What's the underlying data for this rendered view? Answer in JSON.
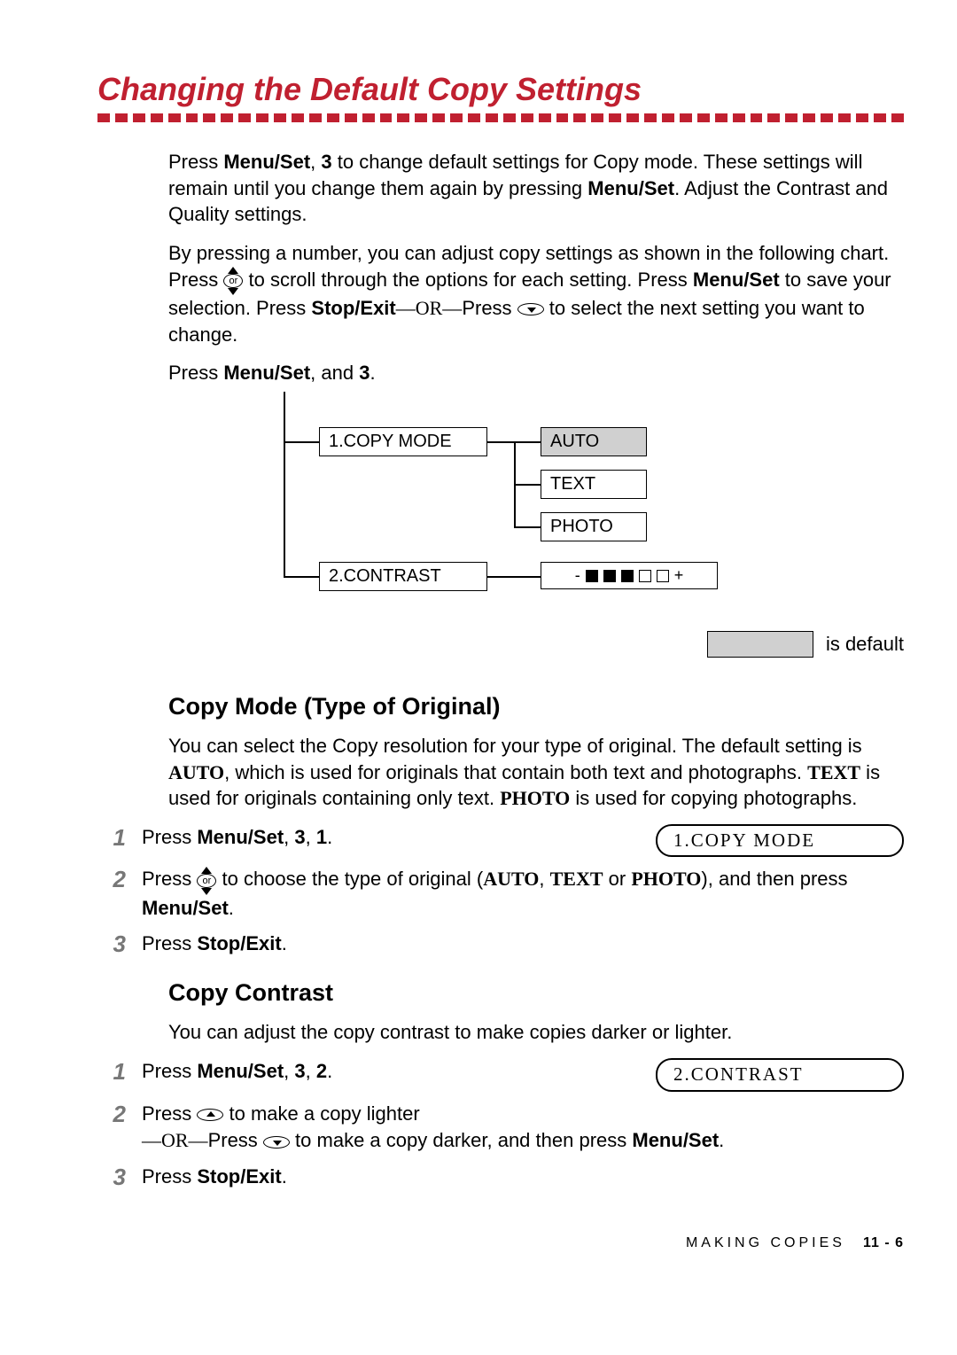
{
  "colors": {
    "heading": "#c02030",
    "dash": "#c02030",
    "default_fill": "#d0d0d0",
    "step_num": "#777777"
  },
  "h1": "Changing the Default Copy Settings",
  "intro": {
    "p1a": "Press ",
    "p1b": "Menu/Set",
    "p1c": ", ",
    "p1d": "3",
    "p1e": " to change default settings for Copy mode. These settings will remain until you change them again by pressing ",
    "p1f": "Menu/Set",
    "p1g": ". Adjust the Contrast and Quality settings.",
    "p2a": "By pressing a number, you can adjust copy settings as shown in the following chart. Press ",
    "p2or": "or",
    "p2b": " to scroll through the options for each setting. Press ",
    "p2c": "Menu/Set",
    "p2d": " to save your selection. Press ",
    "p2e": "Stop/Exit",
    "p2orline": "—OR—",
    "p2f": "Press ",
    "p2g": " to select the next setting you want to change.",
    "p3a": "Press ",
    "p3b": "Menu/Set",
    "p3c": ", and ",
    "p3d": "3",
    "p3e": "."
  },
  "diagram": {
    "n1": "1.COPY MODE",
    "opt1": "AUTO",
    "opt2": "TEXT",
    "opt3": "PHOTO",
    "n2": "2.CONTRAST",
    "minus": "-",
    "plus": "+"
  },
  "legend": {
    "label": "is default"
  },
  "copymode": {
    "h2": "Copy Mode (Type of Original)",
    "p_a": "You can select the Copy resolution for your type of original. The default setting is ",
    "p_b": "AUTO",
    "p_c": ", which is used for originals that contain both text and photographs. ",
    "p_d": "TEXT",
    "p_e": " is used for originals containing only text. ",
    "p_f": "PHOTO",
    "p_g": " is used for copying photographs.",
    "s1a": "Press ",
    "s1b": "Menu/Set",
    "s1c": ", ",
    "s1d": "3",
    "s1e": ", ",
    "s1f": "1",
    "s1g": ".",
    "lcd1": "1.COPY MODE",
    "s2a": "Press ",
    "s2or": "or",
    "s2b": " to choose the type of original (",
    "s2c": "AUTO",
    "s2d": ", ",
    "s2e": "TEXT",
    "s2f": " or ",
    "s2g": "PHOTO",
    "s2h": "), and then press ",
    "s2i": "Menu/Set",
    "s2j": ".",
    "s3a": "Press ",
    "s3b": "Stop/Exit",
    "s3c": "."
  },
  "contrast": {
    "h2": "Copy Contrast",
    "p": "You can adjust the copy contrast to make copies darker or lighter.",
    "s1a": "Press ",
    "s1b": "Menu/Set",
    "s1c": ", ",
    "s1d": "3",
    "s1e": ", ",
    "s1f": "2",
    "s1g": ".",
    "lcd2": "2.CONTRAST",
    "s2a": "Press ",
    "s2b": " to make a copy lighter",
    "s2or": "—OR—",
    "s2c": "Press ",
    "s2d": " to make a copy darker, and then press ",
    "s2e": "Menu/Set",
    "s2f": ".",
    "s3a": "Press ",
    "s3b": "Stop/Exit",
    "s3c": "."
  },
  "footer": {
    "label": "MAKING COPIES",
    "page": "11 - 6"
  }
}
